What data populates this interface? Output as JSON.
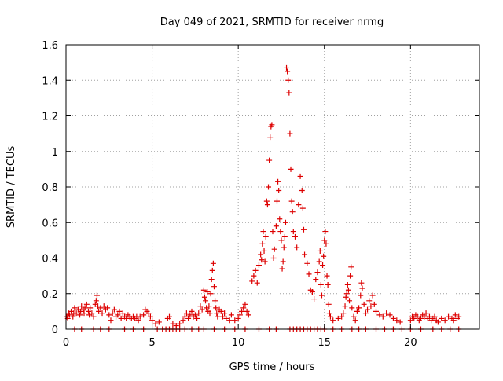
{
  "chart_data": {
    "type": "scatter",
    "title": "Day 049 of 2021, SRMTID for receiver nrmg",
    "xlabel": "GPS time / hours",
    "ylabel": "SRMTID / TECUs",
    "xlim": [
      0,
      24
    ],
    "ylim": [
      0,
      1.6
    ],
    "xticks": [
      0,
      5,
      10,
      15,
      20
    ],
    "xtick_labels": [
      "0",
      "5",
      "10",
      "15",
      "20"
    ],
    "yticks": [
      0,
      0.2,
      0.4,
      0.6,
      0.8,
      1.0,
      1.2,
      1.4,
      1.6
    ],
    "ytick_labels": [
      "0",
      "0.2",
      "0.4",
      "0.6",
      "0.8",
      "1",
      "1.2",
      "1.4",
      "1.6"
    ],
    "grid": true,
    "marker": "+",
    "series": [
      {
        "name": "SRMTID",
        "color": "#dd0000",
        "points": [
          [
            0.05,
            0.07
          ],
          [
            0.1,
            0.06
          ],
          [
            0.15,
            0.09
          ],
          [
            0.2,
            0.08
          ],
          [
            0.3,
            0.1
          ],
          [
            0.4,
            0.07
          ],
          [
            0.45,
            0.09
          ],
          [
            0.5,
            0.12
          ],
          [
            0.6,
            0.09
          ],
          [
            0.7,
            0.11
          ],
          [
            0.8,
            0.08
          ],
          [
            0.85,
            0.1
          ],
          [
            0.9,
            0.13
          ],
          [
            1.0,
            0.11
          ],
          [
            1.05,
            0.09
          ],
          [
            1.1,
            0.12
          ],
          [
            1.2,
            0.14
          ],
          [
            1.3,
            0.1
          ],
          [
            1.35,
            0.08
          ],
          [
            1.4,
            0.12
          ],
          [
            1.5,
            0.09
          ],
          [
            1.6,
            0.07
          ],
          [
            1.7,
            0.14
          ],
          [
            1.75,
            0.16
          ],
          [
            1.8,
            0.19
          ],
          [
            1.85,
            0.13
          ],
          [
            1.9,
            0.1
          ],
          [
            2.0,
            0.12
          ],
          [
            2.1,
            0.09
          ],
          [
            2.2,
            0.13
          ],
          [
            2.3,
            0.11
          ],
          [
            2.4,
            0.12
          ],
          [
            2.5,
            0.08
          ],
          [
            2.6,
            0.05
          ],
          [
            2.7,
            0.09
          ],
          [
            2.8,
            0.11
          ],
          [
            2.9,
            0.07
          ],
          [
            3.0,
            0.08
          ],
          [
            3.1,
            0.1
          ],
          [
            3.2,
            0.06
          ],
          [
            3.3,
            0.09
          ],
          [
            3.4,
            0.07
          ],
          [
            3.5,
            0.06
          ],
          [
            3.6,
            0.08
          ],
          [
            3.7,
            0.07
          ],
          [
            3.8,
            0.06
          ],
          [
            3.9,
            0.07
          ],
          [
            4.0,
            0.06
          ],
          [
            4.1,
            0.07
          ],
          [
            4.2,
            0.05
          ],
          [
            4.3,
            0.07
          ],
          [
            4.5,
            0.08
          ],
          [
            4.6,
            0.11
          ],
          [
            4.7,
            0.1
          ],
          [
            4.8,
            0.09
          ],
          [
            4.9,
            0.07
          ],
          [
            5.0,
            0.05
          ],
          [
            5.2,
            0.03
          ],
          [
            5.4,
            0.04
          ],
          [
            5.9,
            0.06
          ],
          [
            6.0,
            0.07
          ],
          [
            6.2,
            0.03
          ],
          [
            6.4,
            0.02
          ],
          [
            6.6,
            0.03
          ],
          [
            6.8,
            0.05
          ],
          [
            6.9,
            0.07
          ],
          [
            7.0,
            0.09
          ],
          [
            7.1,
            0.06
          ],
          [
            7.2,
            0.08
          ],
          [
            7.3,
            0.1
          ],
          [
            7.4,
            0.07
          ],
          [
            7.5,
            0.08
          ],
          [
            7.6,
            0.06
          ],
          [
            7.7,
            0.09
          ],
          [
            7.8,
            0.13
          ],
          [
            7.9,
            0.11
          ],
          [
            8.0,
            0.22
          ],
          [
            8.05,
            0.18
          ],
          [
            8.1,
            0.16
          ],
          [
            8.15,
            0.12
          ],
          [
            8.2,
            0.21
          ],
          [
            8.25,
            0.1
          ],
          [
            8.3,
            0.13
          ],
          [
            8.35,
            0.09
          ],
          [
            8.4,
            0.2
          ],
          [
            8.45,
            0.28
          ],
          [
            8.5,
            0.33
          ],
          [
            8.55,
            0.37
          ],
          [
            8.6,
            0.24
          ],
          [
            8.65,
            0.16
          ],
          [
            8.7,
            0.12
          ],
          [
            8.75,
            0.09
          ],
          [
            8.8,
            0.07
          ],
          [
            8.9,
            0.11
          ],
          [
            9.0,
            0.1
          ],
          [
            9.1,
            0.07
          ],
          [
            9.2,
            0.09
          ],
          [
            9.3,
            0.06
          ],
          [
            9.5,
            0.05
          ],
          [
            9.6,
            0.08
          ],
          [
            9.8,
            0.05
          ],
          [
            10.0,
            0.06
          ],
          [
            10.1,
            0.08
          ],
          [
            10.2,
            0.1
          ],
          [
            10.3,
            0.12
          ],
          [
            10.4,
            0.14
          ],
          [
            10.5,
            0.1
          ],
          [
            10.6,
            0.08
          ],
          [
            10.8,
            0.27
          ],
          [
            10.9,
            0.3
          ],
          [
            11.0,
            0.33
          ],
          [
            11.1,
            0.26
          ],
          [
            11.2,
            0.36
          ],
          [
            11.3,
            0.42
          ],
          [
            11.35,
            0.39
          ],
          [
            11.4,
            0.48
          ],
          [
            11.45,
            0.55
          ],
          [
            11.5,
            0.44
          ],
          [
            11.55,
            0.38
          ],
          [
            11.6,
            0.52
          ],
          [
            11.65,
            0.72
          ],
          [
            11.7,
            0.7
          ],
          [
            11.75,
            0.8
          ],
          [
            11.8,
            0.95
          ],
          [
            11.85,
            1.08
          ],
          [
            11.9,
            1.14
          ],
          [
            11.95,
            1.15
          ],
          [
            12.0,
            0.55
          ],
          [
            12.05,
            0.4
          ],
          [
            12.1,
            0.45
          ],
          [
            12.2,
            0.58
          ],
          [
            12.25,
            0.72
          ],
          [
            12.3,
            0.83
          ],
          [
            12.35,
            0.78
          ],
          [
            12.4,
            0.62
          ],
          [
            12.45,
            0.55
          ],
          [
            12.5,
            0.5
          ],
          [
            12.55,
            0.34
          ],
          [
            12.6,
            0.38
          ],
          [
            12.65,
            0.46
          ],
          [
            12.7,
            0.52
          ],
          [
            12.75,
            0.6
          ],
          [
            12.8,
            1.47
          ],
          [
            12.85,
            1.45
          ],
          [
            12.9,
            1.4
          ],
          [
            12.95,
            1.33
          ],
          [
            13.0,
            1.1
          ],
          [
            13.05,
            0.9
          ],
          [
            13.1,
            0.72
          ],
          [
            13.15,
            0.66
          ],
          [
            13.2,
            0.55
          ],
          [
            13.3,
            0.52
          ],
          [
            13.4,
            0.46
          ],
          [
            13.5,
            0.7
          ],
          [
            13.6,
            0.86
          ],
          [
            13.7,
            0.78
          ],
          [
            13.75,
            0.68
          ],
          [
            13.8,
            0.56
          ],
          [
            13.85,
            0.42
          ],
          [
            14.0,
            0.37
          ],
          [
            14.1,
            0.31
          ],
          [
            14.2,
            0.22
          ],
          [
            14.3,
            0.21
          ],
          [
            14.4,
            0.17
          ],
          [
            14.5,
            0.28
          ],
          [
            14.6,
            0.32
          ],
          [
            14.7,
            0.38
          ],
          [
            14.75,
            0.44
          ],
          [
            14.8,
            0.25
          ],
          [
            14.85,
            0.19
          ],
          [
            14.9,
            0.36
          ],
          [
            14.95,
            0.41
          ],
          [
            15.0,
            0.5
          ],
          [
            15.05,
            0.55
          ],
          [
            15.1,
            0.48
          ],
          [
            15.15,
            0.3
          ],
          [
            15.2,
            0.25
          ],
          [
            15.25,
            0.14
          ],
          [
            15.3,
            0.09
          ],
          [
            15.35,
            0.07
          ],
          [
            15.5,
            0.05
          ],
          [
            15.8,
            0.06
          ],
          [
            16.0,
            0.07
          ],
          [
            16.1,
            0.09
          ],
          [
            16.2,
            0.13
          ],
          [
            16.25,
            0.18
          ],
          [
            16.3,
            0.2
          ],
          [
            16.35,
            0.25
          ],
          [
            16.4,
            0.22
          ],
          [
            16.45,
            0.16
          ],
          [
            16.5,
            0.3
          ],
          [
            16.55,
            0.35
          ],
          [
            16.6,
            0.12
          ],
          [
            16.7,
            0.07
          ],
          [
            16.8,
            0.05
          ],
          [
            16.9,
            0.1
          ],
          [
            17.0,
            0.12
          ],
          [
            17.1,
            0.19
          ],
          [
            17.15,
            0.26
          ],
          [
            17.2,
            0.23
          ],
          [
            17.3,
            0.14
          ],
          [
            17.4,
            0.09
          ],
          [
            17.5,
            0.11
          ],
          [
            17.6,
            0.16
          ],
          [
            17.7,
            0.13
          ],
          [
            17.8,
            0.19
          ],
          [
            17.9,
            0.14
          ],
          [
            18.0,
            0.1
          ],
          [
            18.2,
            0.08
          ],
          [
            18.4,
            0.07
          ],
          [
            18.6,
            0.09
          ],
          [
            18.8,
            0.08
          ],
          [
            19.0,
            0.06
          ],
          [
            19.2,
            0.05
          ],
          [
            19.4,
            0.04
          ],
          [
            20.0,
            0.05
          ],
          [
            20.1,
            0.07
          ],
          [
            20.2,
            0.06
          ],
          [
            20.3,
            0.08
          ],
          [
            20.4,
            0.07
          ],
          [
            20.5,
            0.05
          ],
          [
            20.6,
            0.06
          ],
          [
            20.7,
            0.08
          ],
          [
            20.8,
            0.07
          ],
          [
            20.9,
            0.09
          ],
          [
            21.0,
            0.06
          ],
          [
            21.1,
            0.07
          ],
          [
            21.2,
            0.05
          ],
          [
            21.3,
            0.06
          ],
          [
            21.4,
            0.07
          ],
          [
            21.5,
            0.05
          ],
          [
            21.6,
            0.04
          ],
          [
            21.8,
            0.06
          ],
          [
            22.0,
            0.05
          ],
          [
            22.2,
            0.07
          ],
          [
            22.4,
            0.06
          ],
          [
            22.5,
            0.05
          ],
          [
            22.6,
            0.08
          ],
          [
            22.7,
            0.06
          ],
          [
            22.8,
            0.07
          ],
          [
            0.5,
            0.0
          ],
          [
            0.9,
            0.0
          ],
          [
            1.6,
            0.0
          ],
          [
            2.0,
            0.0
          ],
          [
            2.5,
            0.0
          ],
          [
            3.4,
            0.0
          ],
          [
            3.9,
            0.0
          ],
          [
            4.5,
            0.0
          ],
          [
            5.3,
            0.0
          ],
          [
            5.6,
            0.0
          ],
          [
            5.8,
            0.0
          ],
          [
            6.0,
            0.0
          ],
          [
            6.2,
            0.0
          ],
          [
            6.4,
            0.0
          ],
          [
            6.6,
            0.0
          ],
          [
            6.9,
            0.0
          ],
          [
            7.3,
            0.0
          ],
          [
            7.7,
            0.0
          ],
          [
            8.0,
            0.0
          ],
          [
            8.6,
            0.0
          ],
          [
            9.2,
            0.0
          ],
          [
            9.8,
            0.0
          ],
          [
            10.4,
            0.0
          ],
          [
            11.2,
            0.0
          ],
          [
            11.8,
            0.0
          ],
          [
            12.2,
            0.0
          ],
          [
            13.0,
            0.0
          ],
          [
            13.2,
            0.0
          ],
          [
            13.4,
            0.0
          ],
          [
            13.6,
            0.0
          ],
          [
            13.8,
            0.0
          ],
          [
            14.0,
            0.0
          ],
          [
            14.2,
            0.0
          ],
          [
            14.4,
            0.0
          ],
          [
            14.6,
            0.0
          ],
          [
            14.8,
            0.0
          ],
          [
            15.0,
            0.0
          ],
          [
            15.5,
            0.0
          ],
          [
            16.0,
            0.0
          ],
          [
            16.6,
            0.0
          ],
          [
            17.0,
            0.0
          ],
          [
            17.4,
            0.0
          ],
          [
            18.0,
            0.0
          ],
          [
            18.5,
            0.0
          ],
          [
            19.0,
            0.0
          ],
          [
            19.5,
            0.0
          ],
          [
            20.0,
            0.0
          ],
          [
            20.6,
            0.0
          ],
          [
            21.3,
            0.0
          ],
          [
            21.8,
            0.0
          ],
          [
            22.3,
            0.0
          ],
          [
            22.8,
            0.0
          ]
        ]
      }
    ]
  }
}
